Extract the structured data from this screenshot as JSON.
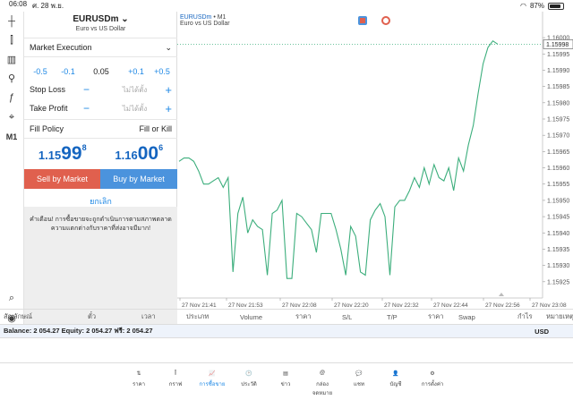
{
  "status": {
    "time": "06:08",
    "date": "ศ. 28 พ.ย.",
    "battery": "87%",
    "battery_fill": 0.87
  },
  "left_toolbar": [
    {
      "name": "crosshair-icon",
      "glyph": "┼"
    },
    {
      "name": "chart-type-icon",
      "glyph": "⫿"
    },
    {
      "name": "bar-chart-icon",
      "glyph": "▥"
    },
    {
      "name": "indicators-icon",
      "glyph": "⚲"
    },
    {
      "name": "function-icon",
      "glyph": "ƒ"
    },
    {
      "name": "objects-icon",
      "glyph": "⌖"
    },
    {
      "name": "timeframe-label",
      "glyph": "M1"
    },
    {
      "name": "search-zoom-icon",
      "glyph": "⌕"
    },
    {
      "name": "app-logo-icon",
      "glyph": "◉"
    }
  ],
  "order": {
    "symbol": "EURUSDm",
    "symbol_desc": "Euro vs US Dollar",
    "execution": "Market Execution",
    "vol_minus_big": "-0.5",
    "vol_minus_small": "-0.1",
    "volume": "0.05",
    "vol_plus_small": "+0.1",
    "vol_plus_big": "+0.5",
    "stop_loss": "Stop Loss",
    "take_profit": "Take Profit",
    "not_set": "ไม่ได้ตั้ง",
    "minus": "−",
    "plus": "+",
    "fill_policy": "Fill Policy",
    "fill_value": "Fill or Kill",
    "bid_a": "1.15",
    "bid_b": "99",
    "bid_c": "8",
    "ask_a": "1.16",
    "ask_b": "00",
    "ask_c": "6",
    "sell": "Sell by Market",
    "buy": "Buy by Market",
    "cancel": "ยกเลิก",
    "warning": "คำเตือน! การซื้อขายจะถูกดำเนินการตามสภาพตลาด ความแตกต่างกับราคาที่ส่งอาจมีมาก!"
  },
  "chart_header": {
    "symbol": "EURUSDm",
    "timeframe": " • M1",
    "desc": "Euro vs US Dollar"
  },
  "chart_data": {
    "type": "line",
    "current_price": "1.15998",
    "ylim": [
      1.1592,
      1.16008
    ],
    "y_ticks": [
      "1.16000",
      "1.15995",
      "1.15990",
      "1.15985",
      "1.15980",
      "1.15975",
      "1.15970",
      "1.15965",
      "1.15960",
      "1.15955",
      "1.15950",
      "1.15945",
      "1.15940",
      "1.15935",
      "1.15930",
      "1.15925"
    ],
    "x_ticks": [
      "27 Nov 21:41",
      "27 Nov 21:53",
      "27 Nov 22:08",
      "27 Nov 22:20",
      "27 Nov 22:32",
      "27 Nov 22:44",
      "27 Nov 22:56",
      "27 Nov 23:08"
    ],
    "color": "#3cae7c",
    "values": [
      1.15962,
      1.15963,
      1.15963,
      1.15962,
      1.15959,
      1.15955,
      1.15955,
      1.15956,
      1.15957,
      1.15954,
      1.15957,
      1.15928,
      1.15946,
      1.15951,
      1.1594,
      1.15944,
      1.15942,
      1.15941,
      1.15927,
      1.15946,
      1.15947,
      1.1595,
      1.15926,
      1.15926,
      1.15946,
      1.15945,
      1.15943,
      1.15941,
      1.15934,
      1.15946,
      1.15946,
      1.15946,
      1.15941,
      1.15935,
      1.15927,
      1.15942,
      1.15939,
      1.15928,
      1.15927,
      1.15944,
      1.15947,
      1.15949,
      1.15945,
      1.15927,
      1.15948,
      1.1595,
      1.1595,
      1.15953,
      1.15957,
      1.15954,
      1.1596,
      1.15955,
      1.15961,
      1.15957,
      1.15956,
      1.1596,
      1.15953,
      1.15963,
      1.15959,
      1.15967,
      1.15973,
      1.15983,
      1.15992,
      1.15997,
      1.15999,
      1.15998
    ]
  },
  "table_header": [
    "สัญลักษณ์",
    "ตั๋ว",
    "เวลา",
    "ประเภท",
    "Volume",
    "ราคา",
    "S/L",
    "T/P",
    "ราคา",
    "Swap",
    "กำไร",
    "หมายเหตุ"
  ],
  "balance": {
    "text": "Balance: 2 054.27 Equity: 2 054.27 ฟรี: 2 054.27",
    "currency": "USD"
  },
  "nav": [
    {
      "label": "ราคา",
      "icon": "⇅",
      "name": "nav-quotes"
    },
    {
      "label": "กราฟ",
      "icon": "⫿",
      "name": "nav-chart"
    },
    {
      "label": "การซื้อขาย",
      "icon": "📈",
      "name": "nav-trade"
    },
    {
      "label": "ประวัติ",
      "icon": "🕑",
      "name": "nav-history"
    },
    {
      "label": "ข่าว",
      "icon": "▤",
      "name": "nav-news"
    },
    {
      "label": "กล่องจดหมาย",
      "icon": "@",
      "name": "nav-mailbox"
    },
    {
      "label": "แชท",
      "icon": "💬",
      "name": "nav-chat"
    },
    {
      "label": "บัญชี",
      "icon": "👤",
      "name": "nav-account"
    },
    {
      "label": "การตั้งค่า",
      "icon": "⚙",
      "name": "nav-settings"
    }
  ],
  "colors": {
    "sell": "#e0604e",
    "buy": "#4b93dd",
    "accent": "#1e88e5"
  }
}
